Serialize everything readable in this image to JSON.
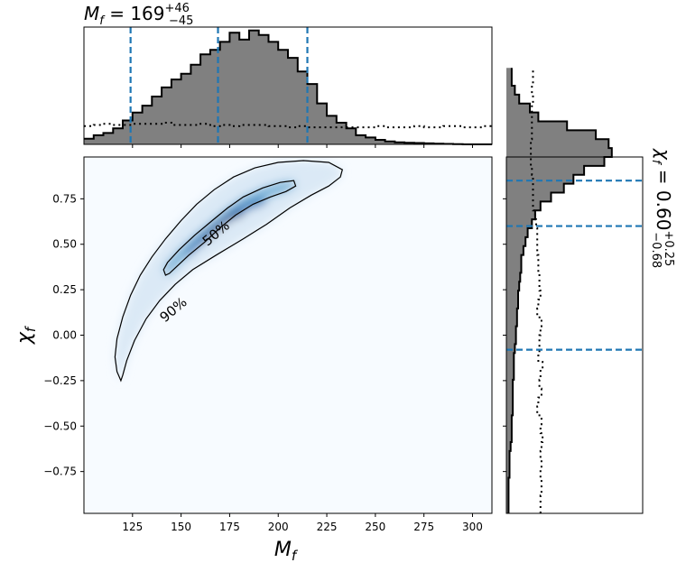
{
  "chart_data": {
    "type": "corner-plot",
    "main": {
      "type": "heatmap",
      "xlabel_base": "M",
      "xlabel_sub": "f",
      "ylabel_base": "χ",
      "ylabel_sub": "f",
      "xlim": [
        100,
        310
      ],
      "ylim": [
        -0.98,
        0.98
      ],
      "xticks": [
        125,
        150,
        175,
        200,
        225,
        250,
        275,
        300
      ],
      "yticks": [
        -0.75,
        -0.5,
        -0.25,
        0.0,
        0.25,
        0.5,
        0.75
      ],
      "ytick_labels": [
        "−0.75",
        "−0.50",
        "−0.25",
        "0.00",
        "0.25",
        "0.50",
        "0.75"
      ],
      "colormap": "Blues",
      "contours": [
        {
          "label": "50%",
          "label_at": [
            168,
            0.56
          ],
          "points": [
            [
              142,
              0.33
            ],
            [
              141,
              0.36
            ],
            [
              143,
              0.4
            ],
            [
              149,
              0.47
            ],
            [
              157,
              0.55
            ],
            [
              166,
              0.63
            ],
            [
              174,
              0.7
            ],
            [
              182,
              0.76
            ],
            [
              192,
              0.81
            ],
            [
              201,
              0.84
            ],
            [
              208,
              0.85
            ],
            [
              209,
              0.82
            ],
            [
              204,
              0.79
            ],
            [
              196,
              0.76
            ],
            [
              187,
              0.72
            ],
            [
              178,
              0.66
            ],
            [
              170,
              0.59
            ],
            [
              162,
              0.51
            ],
            [
              154,
              0.44
            ],
            [
              148,
              0.38
            ],
            [
              144,
              0.34
            ],
            [
              142,
              0.33
            ]
          ]
        },
        {
          "label": "90%",
          "label_at": [
            146,
            0.14
          ],
          "points": [
            [
              119,
              -0.25
            ],
            [
              117,
              -0.2
            ],
            [
              116,
              -0.12
            ],
            [
              117,
              -0.02
            ],
            [
              120,
              0.1
            ],
            [
              124,
              0.22
            ],
            [
              129,
              0.33
            ],
            [
              135,
              0.43
            ],
            [
              142,
              0.53
            ],
            [
              150,
              0.63
            ],
            [
              158,
              0.72
            ],
            [
              167,
              0.8
            ],
            [
              177,
              0.87
            ],
            [
              188,
              0.92
            ],
            [
              200,
              0.95
            ],
            [
              213,
              0.96
            ],
            [
              226,
              0.95
            ],
            [
              233,
              0.91
            ],
            [
              232,
              0.87
            ],
            [
              226,
              0.82
            ],
            [
              217,
              0.77
            ],
            [
              206,
              0.7
            ],
            [
              194,
              0.61
            ],
            [
              182,
              0.53
            ],
            [
              168,
              0.44
            ],
            [
              156,
              0.36
            ],
            [
              147,
              0.28
            ],
            [
              139,
              0.19
            ],
            [
              132,
              0.09
            ],
            [
              126,
              -0.03
            ],
            [
              122,
              -0.14
            ],
            [
              120,
              -0.22
            ],
            [
              119,
              -0.25
            ]
          ]
        }
      ]
    },
    "top_marginal": {
      "type": "histogram",
      "title_prefix": "M",
      "title_sub": "f",
      "title_value": " = 169",
      "title_upper": "+46",
      "title_lower": "−45",
      "bin_start": 100,
      "bin_width": 5,
      "posterior": [
        0.05,
        0.08,
        0.1,
        0.14,
        0.21,
        0.28,
        0.34,
        0.42,
        0.5,
        0.57,
        0.62,
        0.7,
        0.79,
        0.83,
        0.9,
        0.98,
        0.92,
        1.0,
        0.96,
        0.9,
        0.83,
        0.76,
        0.64,
        0.53,
        0.36,
        0.25,
        0.19,
        0.14,
        0.08,
        0.06,
        0.04,
        0.025,
        0.018,
        0.014,
        0.012,
        0.009,
        0.006,
        0.004,
        0.002,
        0.0,
        0.0,
        0.0
      ],
      "prior": [
        0.16,
        0.17,
        0.18,
        0.17,
        0.17,
        0.18,
        0.18,
        0.18,
        0.19,
        0.17,
        0.17,
        0.17,
        0.18,
        0.16,
        0.17,
        0.16,
        0.17,
        0.17,
        0.17,
        0.16,
        0.16,
        0.15,
        0.16,
        0.15,
        0.15,
        0.15,
        0.15,
        0.15,
        0.15,
        0.15,
        0.16,
        0.15,
        0.15,
        0.15,
        0.16,
        0.15,
        0.15,
        0.16,
        0.16,
        0.15,
        0.15,
        0.16
      ],
      "median": 169,
      "lower": 124,
      "upper": 215,
      "ylim": [
        0,
        1.03
      ]
    },
    "right_marginal": {
      "type": "histogram",
      "orientation": "horizontal",
      "title_prefix": "χ",
      "title_sub": "f",
      "title_value": " = 0.60",
      "title_upper": "+0.25",
      "title_lower": "−0.68",
      "bin_start": -0.98,
      "bin_width": 0.049,
      "posterior": [
        0.02,
        0.02,
        0.02,
        0.02,
        0.03,
        0.03,
        0.03,
        0.04,
        0.05,
        0.05,
        0.05,
        0.06,
        0.06,
        0.06,
        0.06,
        0.07,
        0.07,
        0.07,
        0.08,
        0.09,
        0.09,
        0.1,
        0.1,
        0.11,
        0.11,
        0.12,
        0.13,
        0.14,
        0.14,
        0.16,
        0.18,
        0.2,
        0.24,
        0.27,
        0.32,
        0.42,
        0.54,
        0.63,
        0.73,
        0.92,
        0.99,
        0.96,
        0.84,
        0.57,
        0.3,
        0.22,
        0.12,
        0.08,
        0.05,
        0.05
      ],
      "prior": [
        0.32,
        0.32,
        0.33,
        0.33,
        0.32,
        0.33,
        0.32,
        0.33,
        0.34,
        0.32,
        0.33,
        0.29,
        0.3,
        0.33,
        0.31,
        0.32,
        0.34,
        0.3,
        0.31,
        0.31,
        0.32,
        0.33,
        0.29,
        0.3,
        0.32,
        0.31,
        0.31,
        0.3,
        0.3,
        0.29,
        0.29,
        0.29,
        0.28,
        0.27,
        0.25,
        0.25,
        0.25,
        0.25,
        0.24,
        0.23,
        0.23,
        0.23,
        0.24,
        0.24,
        0.24,
        0.24,
        0.25,
        0.24,
        0.25,
        0.25
      ],
      "median": 0.6,
      "lower": -0.08,
      "upper": 0.85,
      "xlim": [
        0,
        1.28
      ]
    }
  }
}
